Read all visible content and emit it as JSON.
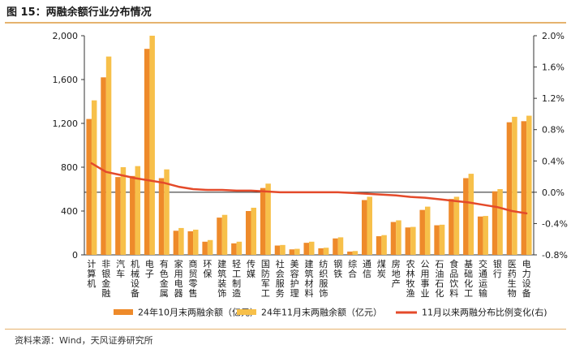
{
  "title": "图 15：两融余额行业分布情况",
  "source": "资料来源：Wind，天风证券研究所",
  "colors": {
    "oct": "#ee8a2a",
    "nov": "#f7c04a",
    "line": "#e44a2a",
    "rule": "#e6b36e"
  },
  "chart_data": {
    "type": "bar",
    "categories": [
      "计算机",
      "非银金融",
      "汽车",
      "机械设备",
      "电子",
      "有色金属",
      "家用电器",
      "商贸零售",
      "环保",
      "建筑装饰",
      "轻工制造",
      "传媒",
      "国防军工",
      "社会服务",
      "美容护理",
      "建筑材料",
      "纺织服饰",
      "钢铁",
      "综合",
      "通信",
      "煤炭",
      "房地产",
      "农林牧渔",
      "公用事业",
      "石油石化",
      "食品饮料",
      "基础化工",
      "交通运输",
      "银行",
      "医药生物",
      "电力设备"
    ],
    "series": [
      {
        "name": "24年10月末两融余额（亿元）",
        "axis": "left",
        "values": [
          1240,
          1620,
          710,
          720,
          1880,
          700,
          220,
          215,
          120,
          340,
          105,
          400,
          610,
          85,
          50,
          110,
          60,
          150,
          30,
          500,
          170,
          300,
          250,
          410,
          270,
          510,
          700,
          350,
          580,
          1210,
          1220
        ]
      },
      {
        "name": "24年11月末两融余额（亿元）",
        "axis": "left",
        "values": [
          1410,
          1810,
          800,
          810,
          2000,
          780,
          245,
          230,
          135,
          365,
          120,
          430,
          650,
          90,
          55,
          120,
          65,
          160,
          35,
          530,
          180,
          315,
          255,
          440,
          275,
          530,
          740,
          355,
          600,
          1260,
          1270
        ]
      },
      {
        "name": "11月以来两融分布比例变化(右)",
        "axis": "right",
        "type": "line",
        "values": [
          0.37,
          0.26,
          0.22,
          0.18,
          0.15,
          0.12,
          0.07,
          0.04,
          0.03,
          0.03,
          0.02,
          0.02,
          0.01,
          0.0,
          0.0,
          0.0,
          0.0,
          0.0,
          -0.01,
          -0.02,
          -0.03,
          -0.04,
          -0.06,
          -0.07,
          -0.09,
          -0.11,
          -0.13,
          -0.16,
          -0.19,
          -0.24,
          -0.27
        ]
      }
    ],
    "ylim": [
      0,
      2000
    ],
    "yticks": [
      "0",
      "400",
      "800",
      "1,200",
      "1,600",
      "2,000"
    ],
    "y2lim": [
      -0.8,
      2.0
    ],
    "y2ticks": [
      "-0.8%",
      "-0.4%",
      "0.0%",
      "0.4%",
      "0.8%",
      "1.2%",
      "1.6%",
      "2.0%"
    ]
  }
}
